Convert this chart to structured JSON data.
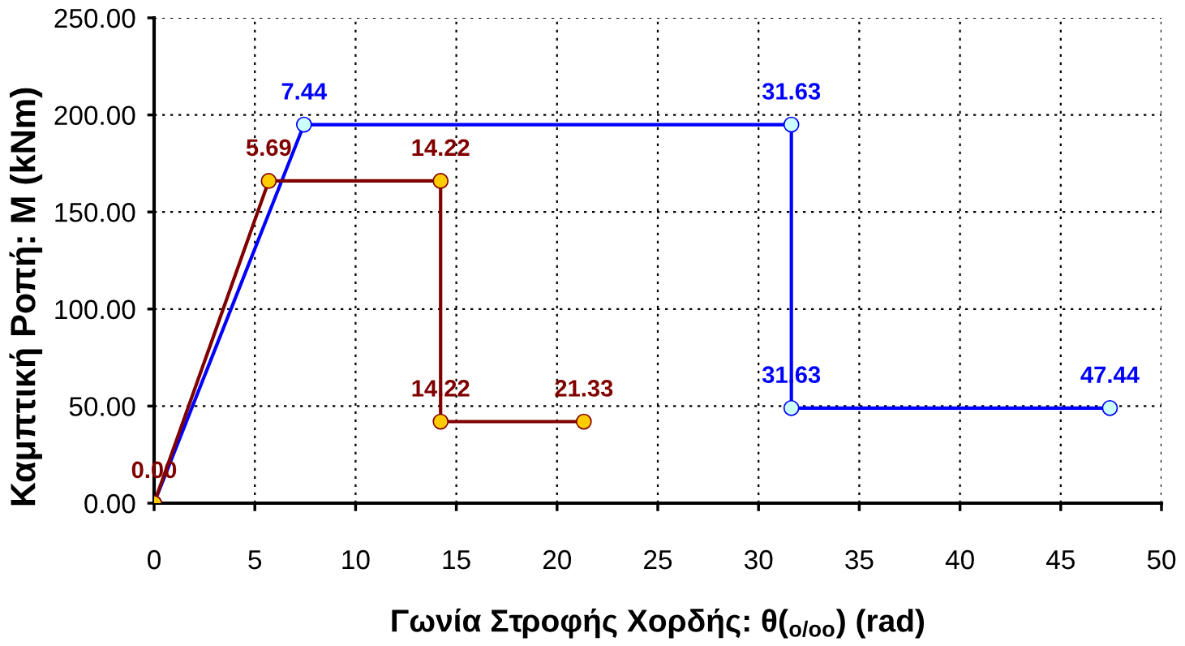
{
  "chart_data": {
    "type": "line",
    "xlabel": "Γωνία Στροφής Χορδής: θ($_{o/oo}$) (rad)",
    "ylabel": "Καμπτική Ροπή: M (kNm)",
    "xlim": [
      0,
      50
    ],
    "xticks": [
      0,
      5,
      10,
      15,
      20,
      25,
      30,
      35,
      40,
      45,
      50
    ],
    "ylim": [
      0,
      250
    ],
    "yticks": [
      {
        "value": 0,
        "label": "0.00"
      },
      {
        "value": 50,
        "label": "50.00"
      },
      {
        "value": 100,
        "label": "100.00"
      },
      {
        "value": 150,
        "label": "150.00"
      },
      {
        "value": 200,
        "label": "200.00"
      },
      {
        "value": 250,
        "label": "250.00"
      }
    ],
    "grid": true,
    "marker": "circle",
    "line_style": "solid",
    "series": [
      {
        "color": "#0000ff",
        "colors": [
          "#ccffff",
          "#ccffff",
          "#ccffff",
          "#ccffff",
          "#ccffff"
        ],
        "x": [
          0,
          7.44,
          31.63,
          31.63,
          47.44
        ],
        "values": [
          0,
          195,
          195,
          49,
          49
        ]
      },
      {
        "color": "#800000",
        "colors": [
          "#ffcc00",
          "#ffcc00",
          "#ffcc00",
          "#ffcc00",
          "#ffcc00"
        ],
        "x": [
          0,
          5.69,
          14.22,
          14.22,
          21.33
        ],
        "values": [
          0,
          166,
          166,
          42,
          42
        ]
      }
    ],
    "annotations": [
      {
        "text": "7.44",
        "x": 7.44,
        "y": 195
      },
      {
        "text": "31.63",
        "x": 31.63,
        "y": 195
      },
      {
        "text": "31.63",
        "x": 31.63,
        "y": 49
      },
      {
        "text": "47.44",
        "x": 47.44,
        "y": 49
      },
      {
        "text": "0.00",
        "x": 0,
        "y": 0
      },
      {
        "text": "5.69",
        "x": 5.69,
        "y": 166
      },
      {
        "text": "14.22",
        "x": 14.22,
        "y": 166
      },
      {
        "text": "14.22",
        "x": 14.22,
        "y": 42
      },
      {
        "text": "21.33",
        "x": 21.33,
        "y": 42
      }
    ]
  }
}
